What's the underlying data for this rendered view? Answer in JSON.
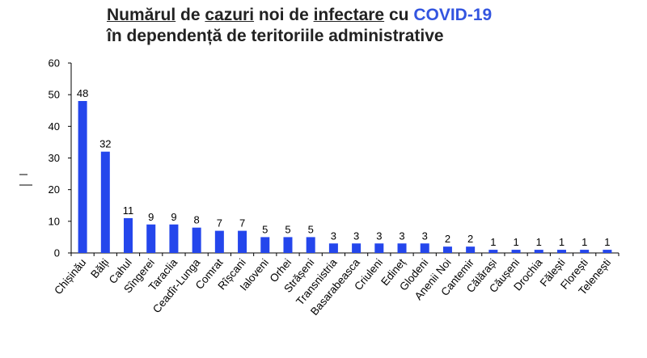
{
  "title": {
    "line1_parts": [
      "Numărul",
      " de ",
      "cazuri",
      " noi de ",
      "infectare",
      " cu ",
      "COVID-19"
    ],
    "line2": "în dependență de teritoriile administrative"
  },
  "colors": {
    "bar": "#2446ec",
    "highlight": "#3355e0"
  },
  "chart_data": {
    "type": "bar",
    "title": "Numărul de cazuri noi de infectare cu COVID-19 în dependență de teritoriile administrative",
    "xlabel": "",
    "ylabel": "",
    "ylim": [
      0,
      60
    ],
    "yticks": [
      "0",
      "10",
      "20",
      "30",
      "40",
      "50",
      "60"
    ],
    "grid": false,
    "legend": "none",
    "categories": [
      "Chișinău",
      "Bălți",
      "Cahul",
      "Sîngerei",
      "Taraclia",
      "Ceadîr-Lunga",
      "Comrat",
      "Rîșcani",
      "Ialoveni",
      "Orhei",
      "Strășeni",
      "Transnistria",
      "Basarabeasca",
      "Criuleni",
      "Edineț",
      "Glodeni",
      "Anenii Noi",
      "Cantemir",
      "Călărași",
      "Căușeni",
      "Drochia",
      "Fălești",
      "Florești",
      "Telenești"
    ],
    "values": [
      48,
      32,
      11,
      9,
      9,
      8,
      7,
      7,
      5,
      5,
      5,
      3,
      3,
      3,
      3,
      3,
      2,
      2,
      1,
      1,
      1,
      1,
      1,
      1
    ]
  }
}
